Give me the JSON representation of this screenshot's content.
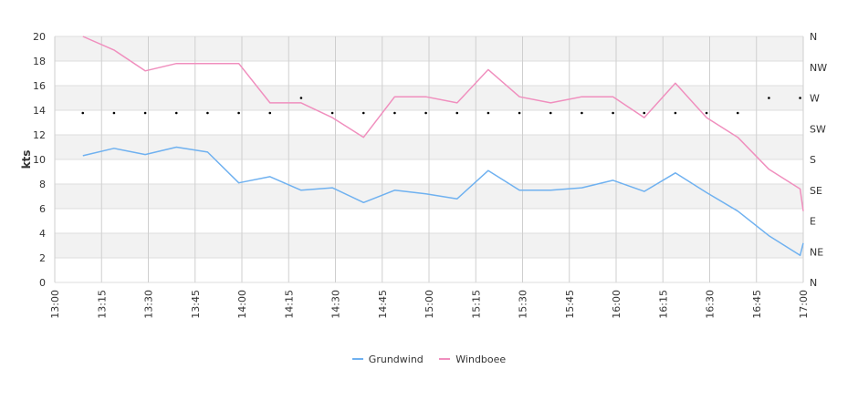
{
  "chart_data": {
    "type": "line",
    "ylabel": "kts",
    "ylim": [
      0,
      20
    ],
    "y_ticks": [
      "0",
      "2",
      "4",
      "6",
      "8",
      "10",
      "12",
      "14",
      "16",
      "18",
      "20"
    ],
    "x_range": [
      "13:00",
      "17:00"
    ],
    "x_ticks": [
      "13:00",
      "13:15",
      "13:30",
      "13:45",
      "14:00",
      "14:15",
      "14:30",
      "14:45",
      "15:00",
      "15:15",
      "15:30",
      "15:45",
      "16:00",
      "16:15",
      "16:30",
      "16:45",
      "17:00"
    ],
    "direction_axis": {
      "labels": [
        "N",
        "NE",
        "E",
        "SE",
        "S",
        "SW",
        "W",
        "NW",
        "N"
      ],
      "range_degrees": [
        0,
        360
      ]
    },
    "grid": true,
    "alternating_bands": true,
    "legend_position": "bottom",
    "series": [
      {
        "name": "Grundwind",
        "color": "#6fb1f0",
        "points": [
          [
            "13:09",
            10.3
          ],
          [
            "13:19",
            10.9
          ],
          [
            "13:29",
            10.4
          ],
          [
            "13:39",
            11.0
          ],
          [
            "13:49",
            10.6
          ],
          [
            "13:59",
            8.1
          ],
          [
            "14:09",
            8.6
          ],
          [
            "14:19",
            7.5
          ],
          [
            "14:29",
            7.7
          ],
          [
            "14:39",
            6.5
          ],
          [
            "14:49",
            7.5
          ],
          [
            "14:59",
            7.2
          ],
          [
            "15:09",
            6.8
          ],
          [
            "15:19",
            9.1
          ],
          [
            "15:29",
            7.5
          ],
          [
            "15:39",
            7.5
          ],
          [
            "15:49",
            7.7
          ],
          [
            "15:59",
            8.3
          ],
          [
            "16:09",
            7.4
          ],
          [
            "16:19",
            8.9
          ],
          [
            "16:29",
            7.3
          ],
          [
            "16:39",
            5.8
          ],
          [
            "16:49",
            3.8
          ],
          [
            "16:59",
            2.2
          ],
          [
            "17:00",
            3.2
          ]
        ]
      },
      {
        "name": "Windboee",
        "color": "#f08fbe",
        "points": [
          [
            "13:09",
            20.0
          ],
          [
            "13:19",
            18.9
          ],
          [
            "13:29",
            17.2
          ],
          [
            "13:39",
            17.8
          ],
          [
            "13:49",
            17.8
          ],
          [
            "13:59",
            17.8
          ],
          [
            "14:09",
            14.6
          ],
          [
            "14:19",
            14.6
          ],
          [
            "14:29",
            13.4
          ],
          [
            "14:39",
            11.8
          ],
          [
            "14:49",
            15.1
          ],
          [
            "14:59",
            15.1
          ],
          [
            "15:09",
            14.6
          ],
          [
            "15:19",
            17.3
          ],
          [
            "15:29",
            15.1
          ],
          [
            "15:39",
            14.6
          ],
          [
            "15:49",
            15.1
          ],
          [
            "15:59",
            15.1
          ],
          [
            "16:09",
            13.4
          ],
          [
            "16:19",
            16.2
          ],
          [
            "16:29",
            13.4
          ],
          [
            "16:39",
            11.8
          ],
          [
            "16:49",
            9.2
          ],
          [
            "16:59",
            7.6
          ],
          [
            "17:00",
            5.8
          ]
        ]
      },
      {
        "name": "Direction",
        "marker": "dot",
        "color": "#000000",
        "points_degrees": [
          [
            "13:09",
            248
          ],
          [
            "13:19",
            248
          ],
          [
            "13:29",
            248
          ],
          [
            "13:39",
            248
          ],
          [
            "13:49",
            248
          ],
          [
            "13:59",
            248
          ],
          [
            "14:09",
            248
          ],
          [
            "14:19",
            270
          ],
          [
            "14:29",
            248
          ],
          [
            "14:39",
            248
          ],
          [
            "14:49",
            248
          ],
          [
            "14:59",
            248
          ],
          [
            "15:09",
            248
          ],
          [
            "15:19",
            248
          ],
          [
            "15:29",
            248
          ],
          [
            "15:39",
            248
          ],
          [
            "15:49",
            248
          ],
          [
            "15:59",
            248
          ],
          [
            "16:09",
            248
          ],
          [
            "16:19",
            248
          ],
          [
            "16:29",
            248
          ],
          [
            "16:39",
            248
          ],
          [
            "16:49",
            270
          ],
          [
            "16:59",
            270
          ]
        ]
      }
    ]
  }
}
